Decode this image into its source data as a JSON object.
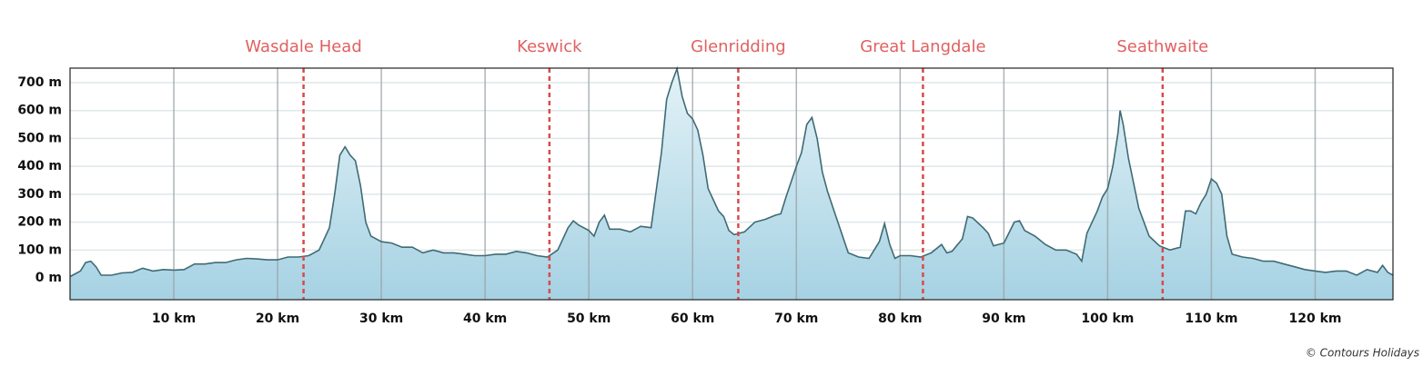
{
  "chart_data": {
    "type": "area",
    "color": "#3f6b74",
    "fill": "#b9dcea",
    "marker_color": "#d94a4a",
    "grid": true,
    "xlim": [
      0,
      127.5
    ],
    "ylim": [
      -78,
      752
    ],
    "yticks": [
      {
        "value": 0,
        "label": "0 m"
      },
      {
        "value": 100,
        "label": "100 m"
      },
      {
        "value": 200,
        "label": "200 m"
      },
      {
        "value": 300,
        "label": "300 m"
      },
      {
        "value": 400,
        "label": "400 m"
      },
      {
        "value": 500,
        "label": "500 m"
      },
      {
        "value": 600,
        "label": "600 m"
      },
      {
        "value": 700,
        "label": "700 m"
      }
    ],
    "xticks": [
      {
        "value": 10,
        "label": "10 km"
      },
      {
        "value": 20,
        "label": "20 km"
      },
      {
        "value": 30,
        "label": "30 km"
      },
      {
        "value": 40,
        "label": "40 km"
      },
      {
        "value": 50,
        "label": "50 km"
      },
      {
        "value": 60,
        "label": "60 km"
      },
      {
        "value": 70,
        "label": "70 km"
      },
      {
        "value": 80,
        "label": "80 km"
      },
      {
        "value": 90,
        "label": "90 km"
      },
      {
        "value": 100,
        "label": "100 km"
      },
      {
        "value": 110,
        "label": "110 km"
      },
      {
        "value": 120,
        "label": "120 km"
      }
    ],
    "markers": [
      {
        "label": "Wasdale Head",
        "x": 22.5
      },
      {
        "label": "Keswick",
        "x": 46.2
      },
      {
        "label": "Glenridding",
        "x": 64.4
      },
      {
        "label": "Great Langdale",
        "x": 82.2
      },
      {
        "label": "Seathwaite",
        "x": 105.3
      }
    ],
    "x": [
      0,
      1,
      1.5,
      2,
      2.5,
      3,
      4,
      5,
      6,
      7,
      8,
      9,
      10,
      11,
      12,
      13,
      14,
      15,
      16,
      17,
      18,
      19,
      20,
      21,
      22,
      23,
      24,
      25,
      25.5,
      26,
      26.5,
      27,
      27.5,
      28,
      28.5,
      29,
      30,
      31,
      32,
      33,
      34,
      35,
      36,
      37,
      38,
      39,
      40,
      41,
      42,
      43,
      44,
      45,
      46,
      47,
      48,
      48.5,
      49,
      50,
      50.5,
      51,
      51.5,
      52,
      53,
      54,
      55,
      56,
      57,
      57.5,
      58,
      58.5,
      59,
      59.5,
      60,
      60.5,
      61,
      61.5,
      62,
      62.5,
      63,
      63.5,
      64,
      65,
      66,
      67,
      68,
      68.5,
      69,
      70,
      70.5,
      71,
      71.5,
      72,
      72.5,
      73,
      74,
      75,
      76,
      77,
      78,
      78.5,
      79,
      79.5,
      80,
      81,
      82,
      83,
      84,
      84.5,
      85,
      86,
      86.5,
      87,
      88,
      88.5,
      89,
      90,
      91,
      91.5,
      92,
      93,
      94,
      95,
      96,
      97,
      97.5,
      98,
      99,
      99.5,
      100,
      100.5,
      101,
      101.2,
      101.5,
      102,
      103,
      104,
      105,
      106,
      107,
      107.5,
      108,
      108.5,
      109,
      109.5,
      110,
      110.5,
      111,
      111.5,
      112,
      113,
      114,
      115,
      116,
      117,
      118,
      119,
      120,
      121,
      122,
      123,
      124,
      125,
      126,
      126.5,
      127,
      127.5
    ],
    "values": [
      5,
      25,
      55,
      60,
      40,
      10,
      10,
      18,
      20,
      35,
      25,
      30,
      28,
      30,
      50,
      50,
      55,
      55,
      65,
      70,
      68,
      65,
      65,
      75,
      75,
      80,
      100,
      180,
      300,
      440,
      470,
      440,
      420,
      330,
      200,
      150,
      130,
      125,
      110,
      110,
      90,
      100,
      90,
      90,
      85,
      80,
      80,
      85,
      85,
      95,
      90,
      80,
      75,
      100,
      180,
      205,
      190,
      170,
      150,
      200,
      225,
      175,
      175,
      165,
      185,
      180,
      450,
      640,
      700,
      750,
      650,
      590,
      570,
      530,
      440,
      320,
      280,
      240,
      220,
      170,
      155,
      165,
      200,
      210,
      225,
      230,
      290,
      400,
      450,
      550,
      575,
      500,
      380,
      310,
      200,
      90,
      75,
      70,
      130,
      195,
      120,
      70,
      80,
      80,
      75,
      90,
      120,
      90,
      95,
      140,
      220,
      215,
      180,
      160,
      115,
      125,
      200,
      205,
      170,
      150,
      120,
      100,
      100,
      85,
      60,
      160,
      240,
      290,
      320,
      400,
      520,
      600,
      550,
      430,
      250,
      150,
      115,
      100,
      110,
      240,
      240,
      230,
      270,
      300,
      355,
      340,
      300,
      150,
      85,
      75,
      70,
      60,
      60,
      50,
      40,
      30,
      25,
      20,
      25,
      25,
      10,
      30,
      20,
      45,
      20,
      10
    ],
    "copyright": "© Contours Holidays"
  }
}
